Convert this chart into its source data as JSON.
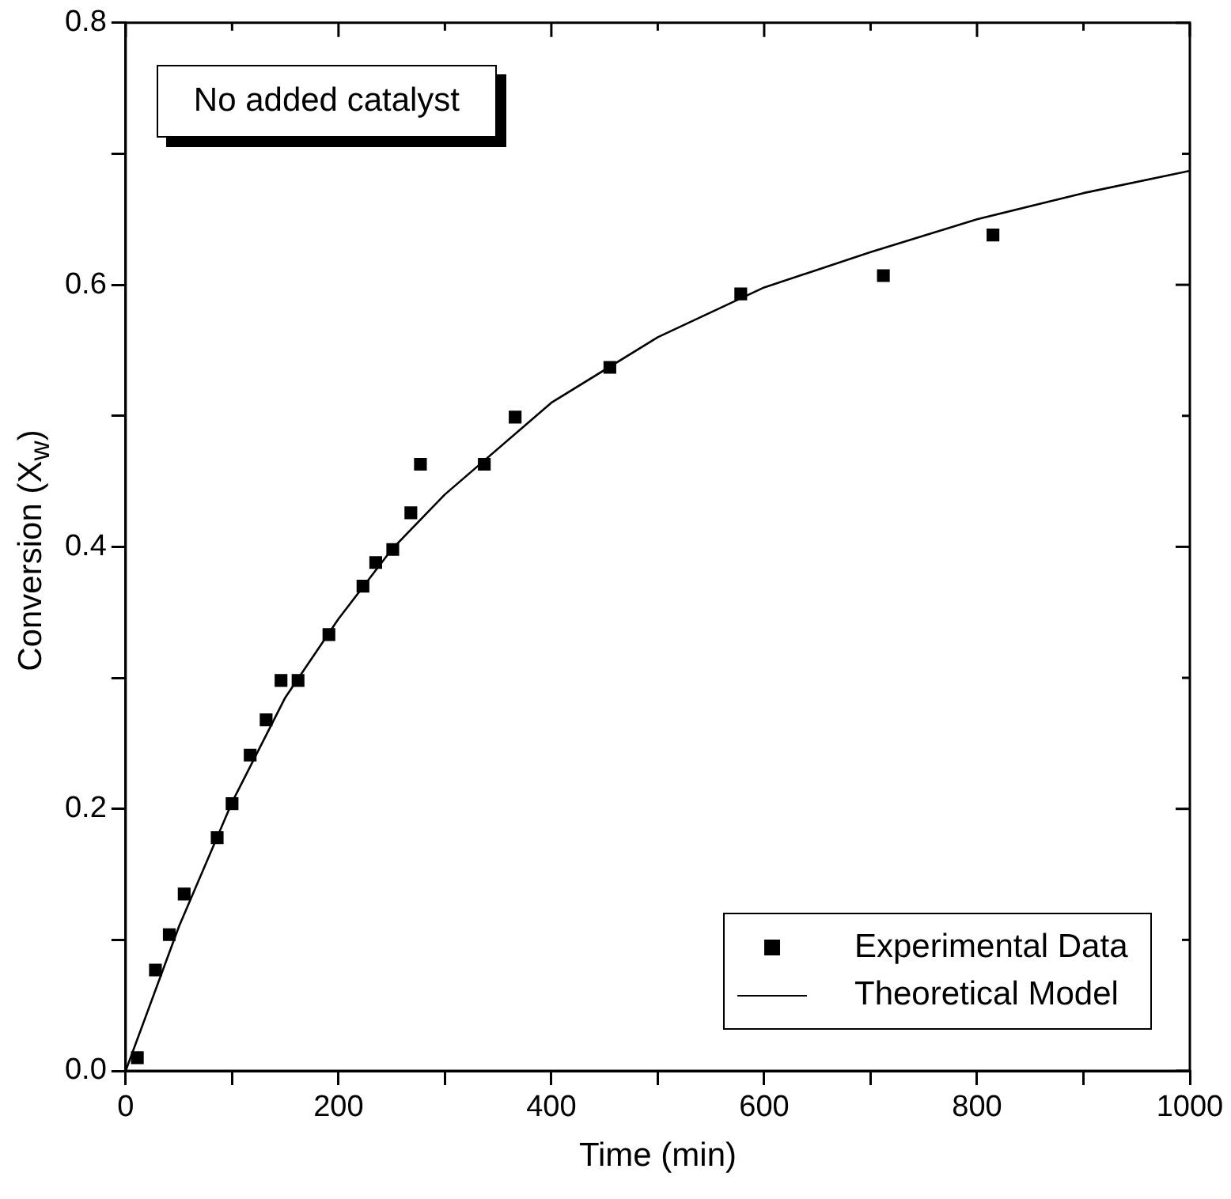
{
  "chart_data": {
    "type": "scatter",
    "xlabel": "Time (min)",
    "ylabel": "Conversion (X$_{w}$)",
    "xlim": [
      0,
      1000
    ],
    "xticks": [
      0,
      {
        "value": 100,
        "label": null
      },
      200,
      {
        "value": 300,
        "label": null
      },
      400,
      {
        "value": 500,
        "label": null
      },
      600,
      {
        "value": 700,
        "label": null
      },
      800,
      {
        "value": 900,
        "label": null
      },
      1000
    ],
    "ylim": [
      0,
      0.8
    ],
    "yticks": [
      {
        "value": 0,
        "label": "0.0"
      },
      {
        "value": 0.1,
        "label": null
      },
      {
        "value": 0.2,
        "label": "0.2"
      },
      {
        "value": 0.3,
        "label": null
      },
      {
        "value": 0.4,
        "label": "0.4"
      },
      {
        "value": 0.5,
        "label": null
      },
      {
        "value": 0.6,
        "label": "0.6"
      },
      {
        "value": 0.7,
        "label": null
      },
      {
        "value": 0.8,
        "label": "0.8"
      }
    ],
    "grid": false,
    "legend": "bottom right",
    "annotations": [
      "No added catalyst"
    ],
    "series": [
      {
        "name": "Experimental Data",
        "marker": "square",
        "color": "#000000",
        "x": [
          11,
          28,
          41,
          55,
          86,
          100,
          117,
          132,
          146,
          162,
          191,
          223,
          235,
          251,
          268,
          277,
          337,
          366,
          455,
          578,
          712,
          815
        ],
        "values": [
          0.01,
          0.077,
          0.104,
          0.135,
          0.178,
          0.204,
          0.241,
          0.268,
          0.298,
          0.298,
          0.333,
          0.37,
          0.388,
          0.398,
          0.426,
          0.463,
          0.463,
          0.499,
          0.537,
          0.593,
          0.607,
          0.638
        ]
      },
      {
        "name": "Theoretical Model",
        "type": "line",
        "marker": "none",
        "line_style": "solid",
        "color": "#000000",
        "x": [
          0,
          50,
          100,
          150,
          200,
          250,
          300,
          400,
          500,
          600,
          700,
          800,
          900,
          1000
        ],
        "values": [
          0,
          0.11,
          0.205,
          0.285,
          0.345,
          0.398,
          0.44,
          0.51,
          0.56,
          0.598,
          0.625,
          0.65,
          0.67,
          0.687
        ]
      }
    ]
  }
}
